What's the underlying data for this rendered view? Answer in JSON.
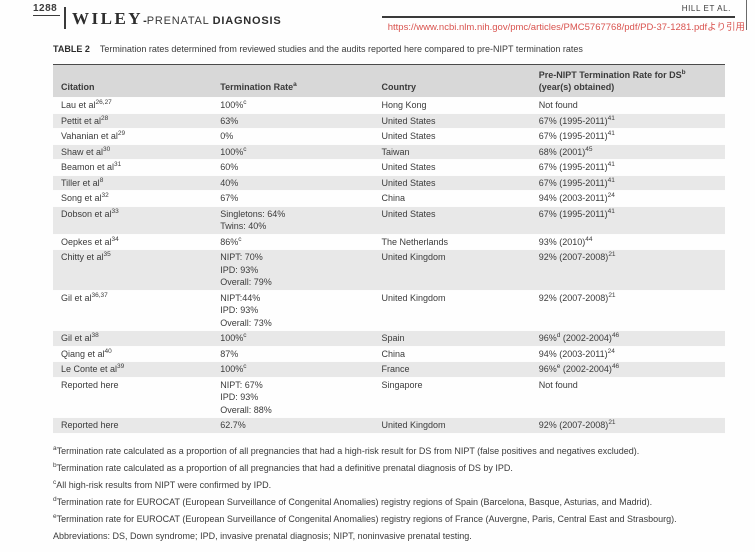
{
  "header": {
    "page_number": "1288",
    "brand_wiley": "WILEY",
    "brand_separator": "-",
    "brand_journal": "PRENATAL",
    "brand_journal_bold": "DIAGNOSIS",
    "running_head": "HILL ET AL.",
    "source_url": "https://www.ncbi.nlm.nih.gov/pmc/articles/PMC5767768/pdf/PD-37-1281.pdfより引用"
  },
  "colors": {
    "header_row_bg": "#d8d8d8",
    "alt_row_bg": "#e8e8e8",
    "text": "#3b3b3b",
    "url_red": "#d9534f"
  },
  "table": {
    "caption_label": "TABLE 2",
    "caption_text": "Termination rates determined from reviewed studies and the audits reported here compared to pre-NIPT termination rates",
    "columns": [
      {
        "key": "citation",
        "lines": [
          [
            {
              "t": "Citation"
            }
          ]
        ]
      },
      {
        "key": "termination_rate",
        "lines": [
          [
            {
              "t": "Termination Rate"
            },
            {
              "s": "a"
            }
          ]
        ]
      },
      {
        "key": "country",
        "lines": [
          [
            {
              "t": "Country"
            }
          ]
        ]
      },
      {
        "key": "pre_nipt_rate",
        "lines": [
          [
            {
              "t": "Pre-NIPT Termination Rate for DS"
            },
            {
              "s": "b"
            }
          ],
          [
            {
              "t": "(year(s) obtained)"
            }
          ]
        ]
      }
    ],
    "rows": [
      {
        "cells": [
          [
            [
              {
                "t": "Lau et al"
              },
              {
                "s": "26,27"
              }
            ]
          ],
          [
            [
              {
                "t": "100%"
              },
              {
                "s": "c"
              }
            ]
          ],
          [
            [
              {
                "t": "Hong Kong"
              }
            ]
          ],
          [
            [
              {
                "t": "Not found"
              }
            ]
          ]
        ]
      },
      {
        "cells": [
          [
            [
              {
                "t": "Pettit et al"
              },
              {
                "s": "28"
              }
            ]
          ],
          [
            [
              {
                "t": "63%"
              }
            ]
          ],
          [
            [
              {
                "t": "United States"
              }
            ]
          ],
          [
            [
              {
                "t": "67% (1995-2011)"
              },
              {
                "s": "41"
              }
            ]
          ]
        ]
      },
      {
        "cells": [
          [
            [
              {
                "t": "Vahanian et al"
              },
              {
                "s": "29"
              }
            ]
          ],
          [
            [
              {
                "t": "0%"
              }
            ]
          ],
          [
            [
              {
                "t": "United States"
              }
            ]
          ],
          [
            [
              {
                "t": "67% (1995-2011)"
              },
              {
                "s": "41"
              }
            ]
          ]
        ]
      },
      {
        "cells": [
          [
            [
              {
                "t": "Shaw et al"
              },
              {
                "s": "30"
              }
            ]
          ],
          [
            [
              {
                "t": "100%"
              },
              {
                "s": "c"
              }
            ]
          ],
          [
            [
              {
                "t": "Taiwan"
              }
            ]
          ],
          [
            [
              {
                "t": "68% (2001)"
              },
              {
                "s": "45"
              }
            ]
          ]
        ]
      },
      {
        "cells": [
          [
            [
              {
                "t": "Beamon et al"
              },
              {
                "s": "31"
              }
            ]
          ],
          [
            [
              {
                "t": "60%"
              }
            ]
          ],
          [
            [
              {
                "t": "United States"
              }
            ]
          ],
          [
            [
              {
                "t": "67% (1995-2011)"
              },
              {
                "s": "41"
              }
            ]
          ]
        ]
      },
      {
        "cells": [
          [
            [
              {
                "t": "Tiller et al"
              },
              {
                "s": "8"
              }
            ]
          ],
          [
            [
              {
                "t": "40%"
              }
            ]
          ],
          [
            [
              {
                "t": "United States"
              }
            ]
          ],
          [
            [
              {
                "t": "67% (1995-2011)"
              },
              {
                "s": "41"
              }
            ]
          ]
        ]
      },
      {
        "cells": [
          [
            [
              {
                "t": "Song et al"
              },
              {
                "s": "32"
              }
            ]
          ],
          [
            [
              {
                "t": "67%"
              }
            ]
          ],
          [
            [
              {
                "t": "China"
              }
            ]
          ],
          [
            [
              {
                "t": "94% (2003-2011)"
              },
              {
                "s": "24"
              }
            ]
          ]
        ]
      },
      {
        "cells": [
          [
            [
              {
                "t": "Dobson et al"
              },
              {
                "s": "33"
              }
            ]
          ],
          [
            [
              {
                "t": "Singletons: 64%"
              }
            ],
            [
              {
                "t": "Twins: 40%"
              }
            ]
          ],
          [
            [
              {
                "t": "United States"
              }
            ]
          ],
          [
            [
              {
                "t": "67% (1995-2011)"
              },
              {
                "s": "41"
              }
            ]
          ]
        ]
      },
      {
        "cells": [
          [
            [
              {
                "t": "Oepkes et al"
              },
              {
                "s": "34"
              }
            ]
          ],
          [
            [
              {
                "t": "86%"
              },
              {
                "s": "c"
              }
            ]
          ],
          [
            [
              {
                "t": "The Netherlands"
              }
            ]
          ],
          [
            [
              {
                "t": "93% (2010)"
              },
              {
                "s": "44"
              }
            ]
          ]
        ]
      },
      {
        "cells": [
          [
            [
              {
                "t": "Chitty et al"
              },
              {
                "s": "35"
              }
            ]
          ],
          [
            [
              {
                "t": "NIPT: 70%"
              }
            ],
            [
              {
                "t": "IPD: 93%"
              }
            ],
            [
              {
                "t": "Overall: 79%"
              }
            ]
          ],
          [
            [
              {
                "t": "United Kingdom"
              }
            ]
          ],
          [
            [
              {
                "t": "92% (2007-2008)"
              },
              {
                "s": "21"
              }
            ]
          ]
        ]
      },
      {
        "cells": [
          [
            [
              {
                "t": "Gil et al"
              },
              {
                "s": "36,37"
              }
            ]
          ],
          [
            [
              {
                "t": "NIPT:44%"
              }
            ],
            [
              {
                "t": "IPD: 93%"
              }
            ],
            [
              {
                "t": "Overall: 73%"
              }
            ]
          ],
          [
            [
              {
                "t": "United Kingdom"
              }
            ]
          ],
          [
            [
              {
                "t": "92% (2007-2008)"
              },
              {
                "s": "21"
              }
            ]
          ]
        ]
      },
      {
        "cells": [
          [
            [
              {
                "t": "Gil et al"
              },
              {
                "s": "38"
              }
            ]
          ],
          [
            [
              {
                "t": "100%"
              },
              {
                "s": "c"
              }
            ]
          ],
          [
            [
              {
                "t": "Spain"
              }
            ]
          ],
          [
            [
              {
                "t": "96%"
              },
              {
                "s": "d"
              },
              {
                "t": " (2002-2004)"
              },
              {
                "s": "46"
              }
            ]
          ]
        ]
      },
      {
        "cells": [
          [
            [
              {
                "t": "Qiang et al"
              },
              {
                "s": "40"
              }
            ]
          ],
          [
            [
              {
                "t": "87%"
              }
            ]
          ],
          [
            [
              {
                "t": "China"
              }
            ]
          ],
          [
            [
              {
                "t": "94% (2003-2011)"
              },
              {
                "s": "24"
              }
            ]
          ]
        ]
      },
      {
        "cells": [
          [
            [
              {
                "t": "Le Conte et al"
              },
              {
                "s": "39"
              }
            ]
          ],
          [
            [
              {
                "t": "100%"
              },
              {
                "s": "c"
              }
            ]
          ],
          [
            [
              {
                "t": "France"
              }
            ]
          ],
          [
            [
              {
                "t": "96%"
              },
              {
                "s": "e"
              },
              {
                "t": " (2002-2004)"
              },
              {
                "s": "46"
              }
            ]
          ]
        ]
      },
      {
        "cells": [
          [
            [
              {
                "t": "Reported here"
              }
            ]
          ],
          [
            [
              {
                "t": "NIPT: 67%"
              }
            ],
            [
              {
                "t": "IPD: 93%"
              }
            ],
            [
              {
                "t": "Overall: 88%"
              }
            ]
          ],
          [
            [
              {
                "t": "Singapore"
              }
            ]
          ],
          [
            [
              {
                "t": "Not found"
              }
            ]
          ]
        ]
      },
      {
        "cells": [
          [
            [
              {
                "t": "Reported here"
              }
            ]
          ],
          [
            [
              {
                "t": "62.7%"
              }
            ]
          ],
          [
            [
              {
                "t": "United Kingdom"
              }
            ]
          ],
          [
            [
              {
                "t": "92% (2007-2008)"
              },
              {
                "s": "21"
              }
            ]
          ]
        ]
      }
    ]
  },
  "footnotes": [
    {
      "sup": "a",
      "text": "Termination rate calculated as a proportion of all pregnancies that had a high-risk result for DS from NIPT (false positives and negatives excluded)."
    },
    {
      "sup": "b",
      "text": "Termination rate calculated as a proportion of all pregnancies that had a definitive prenatal diagnosis of DS by IPD."
    },
    {
      "sup": "c",
      "text": "All high-risk results from NIPT were confirmed by IPD."
    },
    {
      "sup": "d",
      "text": "Termination rate for EUROCAT (European Surveillance of Congenital Anomalies) registry regions of Spain (Barcelona, Basque, Asturias, and Madrid)."
    },
    {
      "sup": "e",
      "text": "Termination rate for EUROCAT (European Surveillance of Congenital Anomalies) registry regions of France (Auvergne, Paris, Central East and Strasbourg)."
    },
    {
      "sup": "",
      "text": "Abbreviations: DS, Down syndrome; IPD, invasive prenatal diagnosis; NIPT, noninvasive prenatal testing."
    }
  ]
}
